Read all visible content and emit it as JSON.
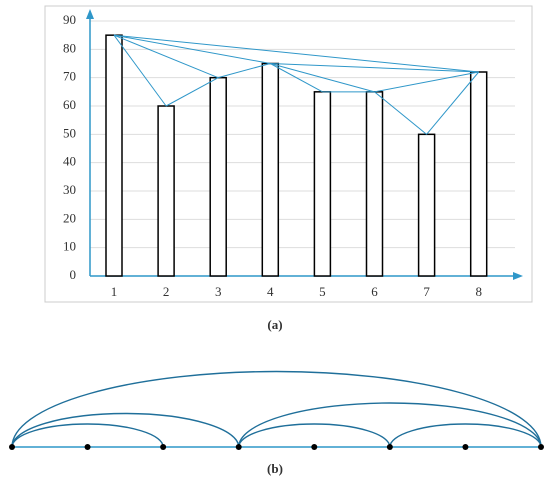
{
  "chart_data": {
    "type": "bar",
    "categories": [
      "1",
      "2",
      "3",
      "4",
      "5",
      "6",
      "7",
      "8"
    ],
    "values": [
      85,
      60,
      70,
      75,
      65,
      65,
      50,
      72
    ],
    "color": "#000000",
    "edge_color": "#2f97c9",
    "ylim": [
      0,
      90
    ],
    "yticks": [
      0,
      10,
      20,
      30,
      40,
      50,
      60,
      70,
      80,
      90
    ],
    "grid": true,
    "edges": [
      [
        1,
        2
      ],
      [
        1,
        3
      ],
      [
        1,
        4
      ],
      [
        1,
        8
      ],
      [
        2,
        3
      ],
      [
        3,
        4
      ],
      [
        4,
        5
      ],
      [
        4,
        6
      ],
      [
        4,
        8
      ],
      [
        5,
        6
      ],
      [
        6,
        7
      ],
      [
        6,
        8
      ],
      [
        7,
        8
      ]
    ],
    "caption": "(a)"
  },
  "graph_b": {
    "arcs": [
      [
        1,
        3
      ],
      [
        1,
        4
      ],
      [
        1,
        8
      ],
      [
        4,
        6
      ],
      [
        4,
        8
      ],
      [
        6,
        8
      ]
    ],
    "caption": "(b)"
  }
}
